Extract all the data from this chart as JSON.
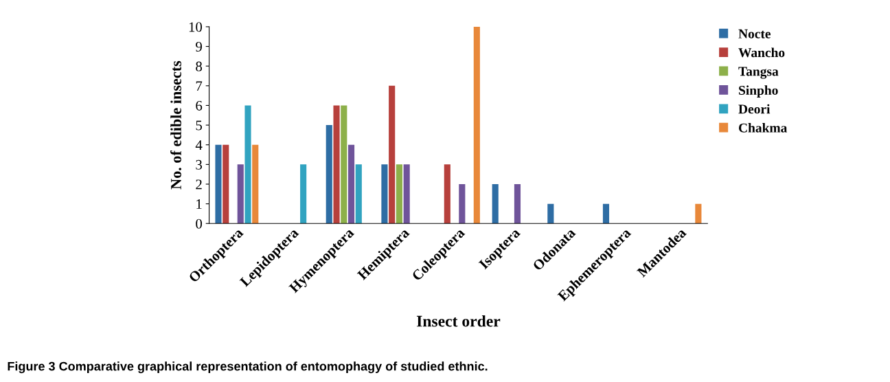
{
  "chart_data": {
    "type": "bar",
    "xlabel": "Insect order",
    "ylabel": "No. of edible insects",
    "categories": [
      "Orthoptera",
      "Lepidoptera",
      "Hymenoptera",
      "Hemiptera",
      "Coleoptera",
      "Isoptera",
      "Odonata",
      "Ephemeroptera",
      "Mantodea"
    ],
    "series": [
      {
        "name": "Nocte",
        "color": "#2e6da4",
        "values": [
          4,
          0,
          5,
          3,
          0,
          2,
          1,
          1,
          0
        ]
      },
      {
        "name": "Wancho",
        "color": "#b7403c",
        "values": [
          4,
          0,
          6,
          7,
          3,
          0,
          0,
          0,
          0
        ]
      },
      {
        "name": "Tangsa",
        "color": "#8db04a",
        "values": [
          0,
          0,
          6,
          3,
          0,
          0,
          0,
          0,
          0
        ]
      },
      {
        "name": "Sinpho",
        "color": "#6f549a",
        "values": [
          3,
          0,
          4,
          3,
          2,
          2,
          0,
          0,
          0
        ]
      },
      {
        "name": "Deori",
        "color": "#31a3c0",
        "values": [
          6,
          3,
          3,
          0,
          0,
          0,
          0,
          0,
          0
        ]
      },
      {
        "name": "Chakma",
        "color": "#e8883a",
        "values": [
          4,
          0,
          0,
          0,
          10,
          0,
          0,
          0,
          1
        ]
      }
    ],
    "ylim": [
      0,
      10
    ],
    "yticks": [
      0,
      1,
      2,
      3,
      4,
      5,
      6,
      7,
      8,
      9,
      10
    ],
    "grid": false,
    "legend": "top right",
    "annotations": [
      "Figure 3 Comparative graphical representation of entomophagy of studied ethnic."
    ]
  }
}
